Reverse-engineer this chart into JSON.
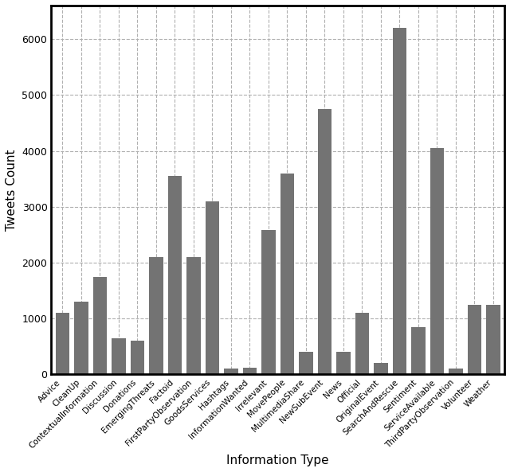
{
  "categories": [
    "Advice",
    "CleanUp",
    "ContextualInformation",
    "Discussion",
    "Donations",
    "EmergingThreats",
    "Factoid",
    "FirstPartyObservation",
    "GoodsServices",
    "Hashtags",
    "InformationWanted",
    "Irrelevant",
    "MovePeople",
    "MultimediaShare",
    "NewSubEvent",
    "News",
    "Official",
    "OriginalEvent",
    "SearchAndRescue",
    "Sentiment",
    "ServiceAvailable",
    "ThirdPartyObservation",
    "Volunteer",
    "Weather"
  ],
  "values": [
    1100,
    1300,
    1750,
    650,
    600,
    2100,
    3550,
    2100,
    3100,
    100,
    120,
    2580,
    3600,
    400,
    4750,
    400,
    1100,
    200,
    6200,
    850,
    4050,
    100,
    1250,
    1250
  ],
  "bar_color": "#737373",
  "xlabel": "Information Type",
  "ylabel": "Tweets Count",
  "ylim": [
    0,
    6600
  ],
  "yticks": [
    0,
    1000,
    2000,
    3000,
    4000,
    5000,
    6000
  ],
  "grid_color": "#b0b0b0",
  "figsize": [
    6.4,
    5.93
  ],
  "dpi": 100,
  "xlabel_fontsize": 11,
  "ylabel_fontsize": 11,
  "xtick_fontsize": 7.5,
  "ytick_fontsize": 9
}
